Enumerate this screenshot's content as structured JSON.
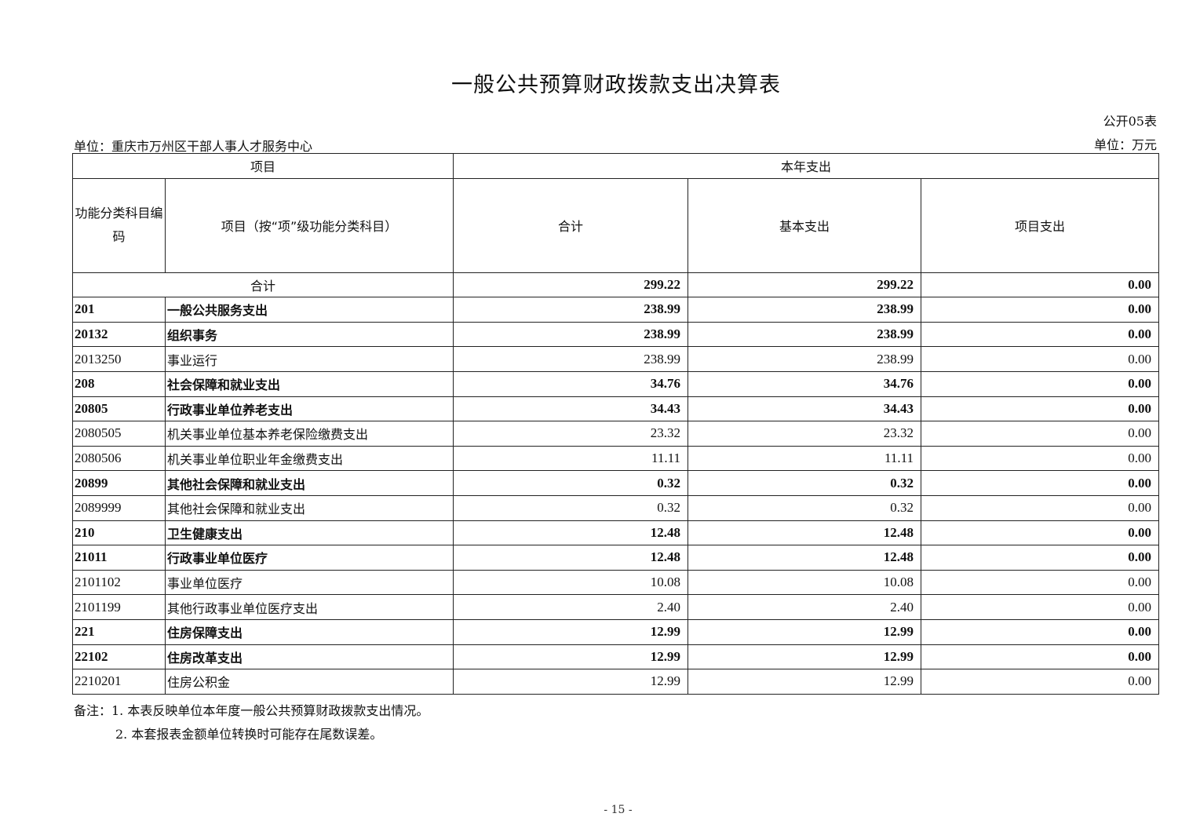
{
  "title": "一般公共预算财政拨款支出决算表",
  "table_no": "公开05表",
  "unit_org": "单位：重庆市万州区干部人事人才服务中心",
  "unit_currency": "单位：万元",
  "headers": {
    "project": "项目",
    "current_year": "本年支出",
    "code": "功能分类科目编码",
    "item": "项目（按“项”级功能分类科目）",
    "total": "合计",
    "basic": "基本支出",
    "project_exp": "项目支出"
  },
  "total_row": {
    "label": "合计",
    "total": "299.22",
    "basic": "299.22",
    "project": "0.00"
  },
  "rows": [
    {
      "code": "201",
      "name": "一般公共服务支出",
      "total": "238.99",
      "basic": "238.99",
      "project": "0.00",
      "bold": true
    },
    {
      "code": "20132",
      "name": "组织事务",
      "total": "238.99",
      "basic": "238.99",
      "project": "0.00",
      "bold": true
    },
    {
      "code": "2013250",
      "name": "事业运行",
      "total": "238.99",
      "basic": "238.99",
      "project": "0.00",
      "bold": false
    },
    {
      "code": "208",
      "name": "社会保障和就业支出",
      "total": "34.76",
      "basic": "34.76",
      "project": "0.00",
      "bold": true
    },
    {
      "code": "20805",
      "name": "行政事业单位养老支出",
      "total": "34.43",
      "basic": "34.43",
      "project": "0.00",
      "bold": true
    },
    {
      "code": "2080505",
      "name": "机关事业单位基本养老保险缴费支出",
      "total": "23.32",
      "basic": "23.32",
      "project": "0.00",
      "bold": false
    },
    {
      "code": "2080506",
      "name": "机关事业单位职业年金缴费支出",
      "total": "11.11",
      "basic": "11.11",
      "project": "0.00",
      "bold": false
    },
    {
      "code": "20899",
      "name": "其他社会保障和就业支出",
      "total": "0.32",
      "basic": "0.32",
      "project": "0.00",
      "bold": true
    },
    {
      "code": "2089999",
      "name": "其他社会保障和就业支出",
      "total": "0.32",
      "basic": "0.32",
      "project": "0.00",
      "bold": false
    },
    {
      "code": "210",
      "name": "卫生健康支出",
      "total": "12.48",
      "basic": "12.48",
      "project": "0.00",
      "bold": true
    },
    {
      "code": "21011",
      "name": "行政事业单位医疗",
      "total": "12.48",
      "basic": "12.48",
      "project": "0.00",
      "bold": true
    },
    {
      "code": "2101102",
      "name": "事业单位医疗",
      "total": "10.08",
      "basic": "10.08",
      "project": "0.00",
      "bold": false
    },
    {
      "code": "2101199",
      "name": "其他行政事业单位医疗支出",
      "total": "2.40",
      "basic": "2.40",
      "project": "0.00",
      "bold": false
    },
    {
      "code": "221",
      "name": "住房保障支出",
      "total": "12.99",
      "basic": "12.99",
      "project": "0.00",
      "bold": true
    },
    {
      "code": "22102",
      "name": "住房改革支出",
      "total": "12.99",
      "basic": "12.99",
      "project": "0.00",
      "bold": true
    },
    {
      "code": "2210201",
      "name": "住房公积金",
      "total": "12.99",
      "basic": "12.99",
      "project": "0.00",
      "bold": false
    }
  ],
  "notes": [
    "备注：1. 本表反映单位本年度一般公共预算财政拨款支出情况。",
    "2. 本套报表金额单位转换时可能存在尾数误差。"
  ],
  "page_number": "- 15 -"
}
